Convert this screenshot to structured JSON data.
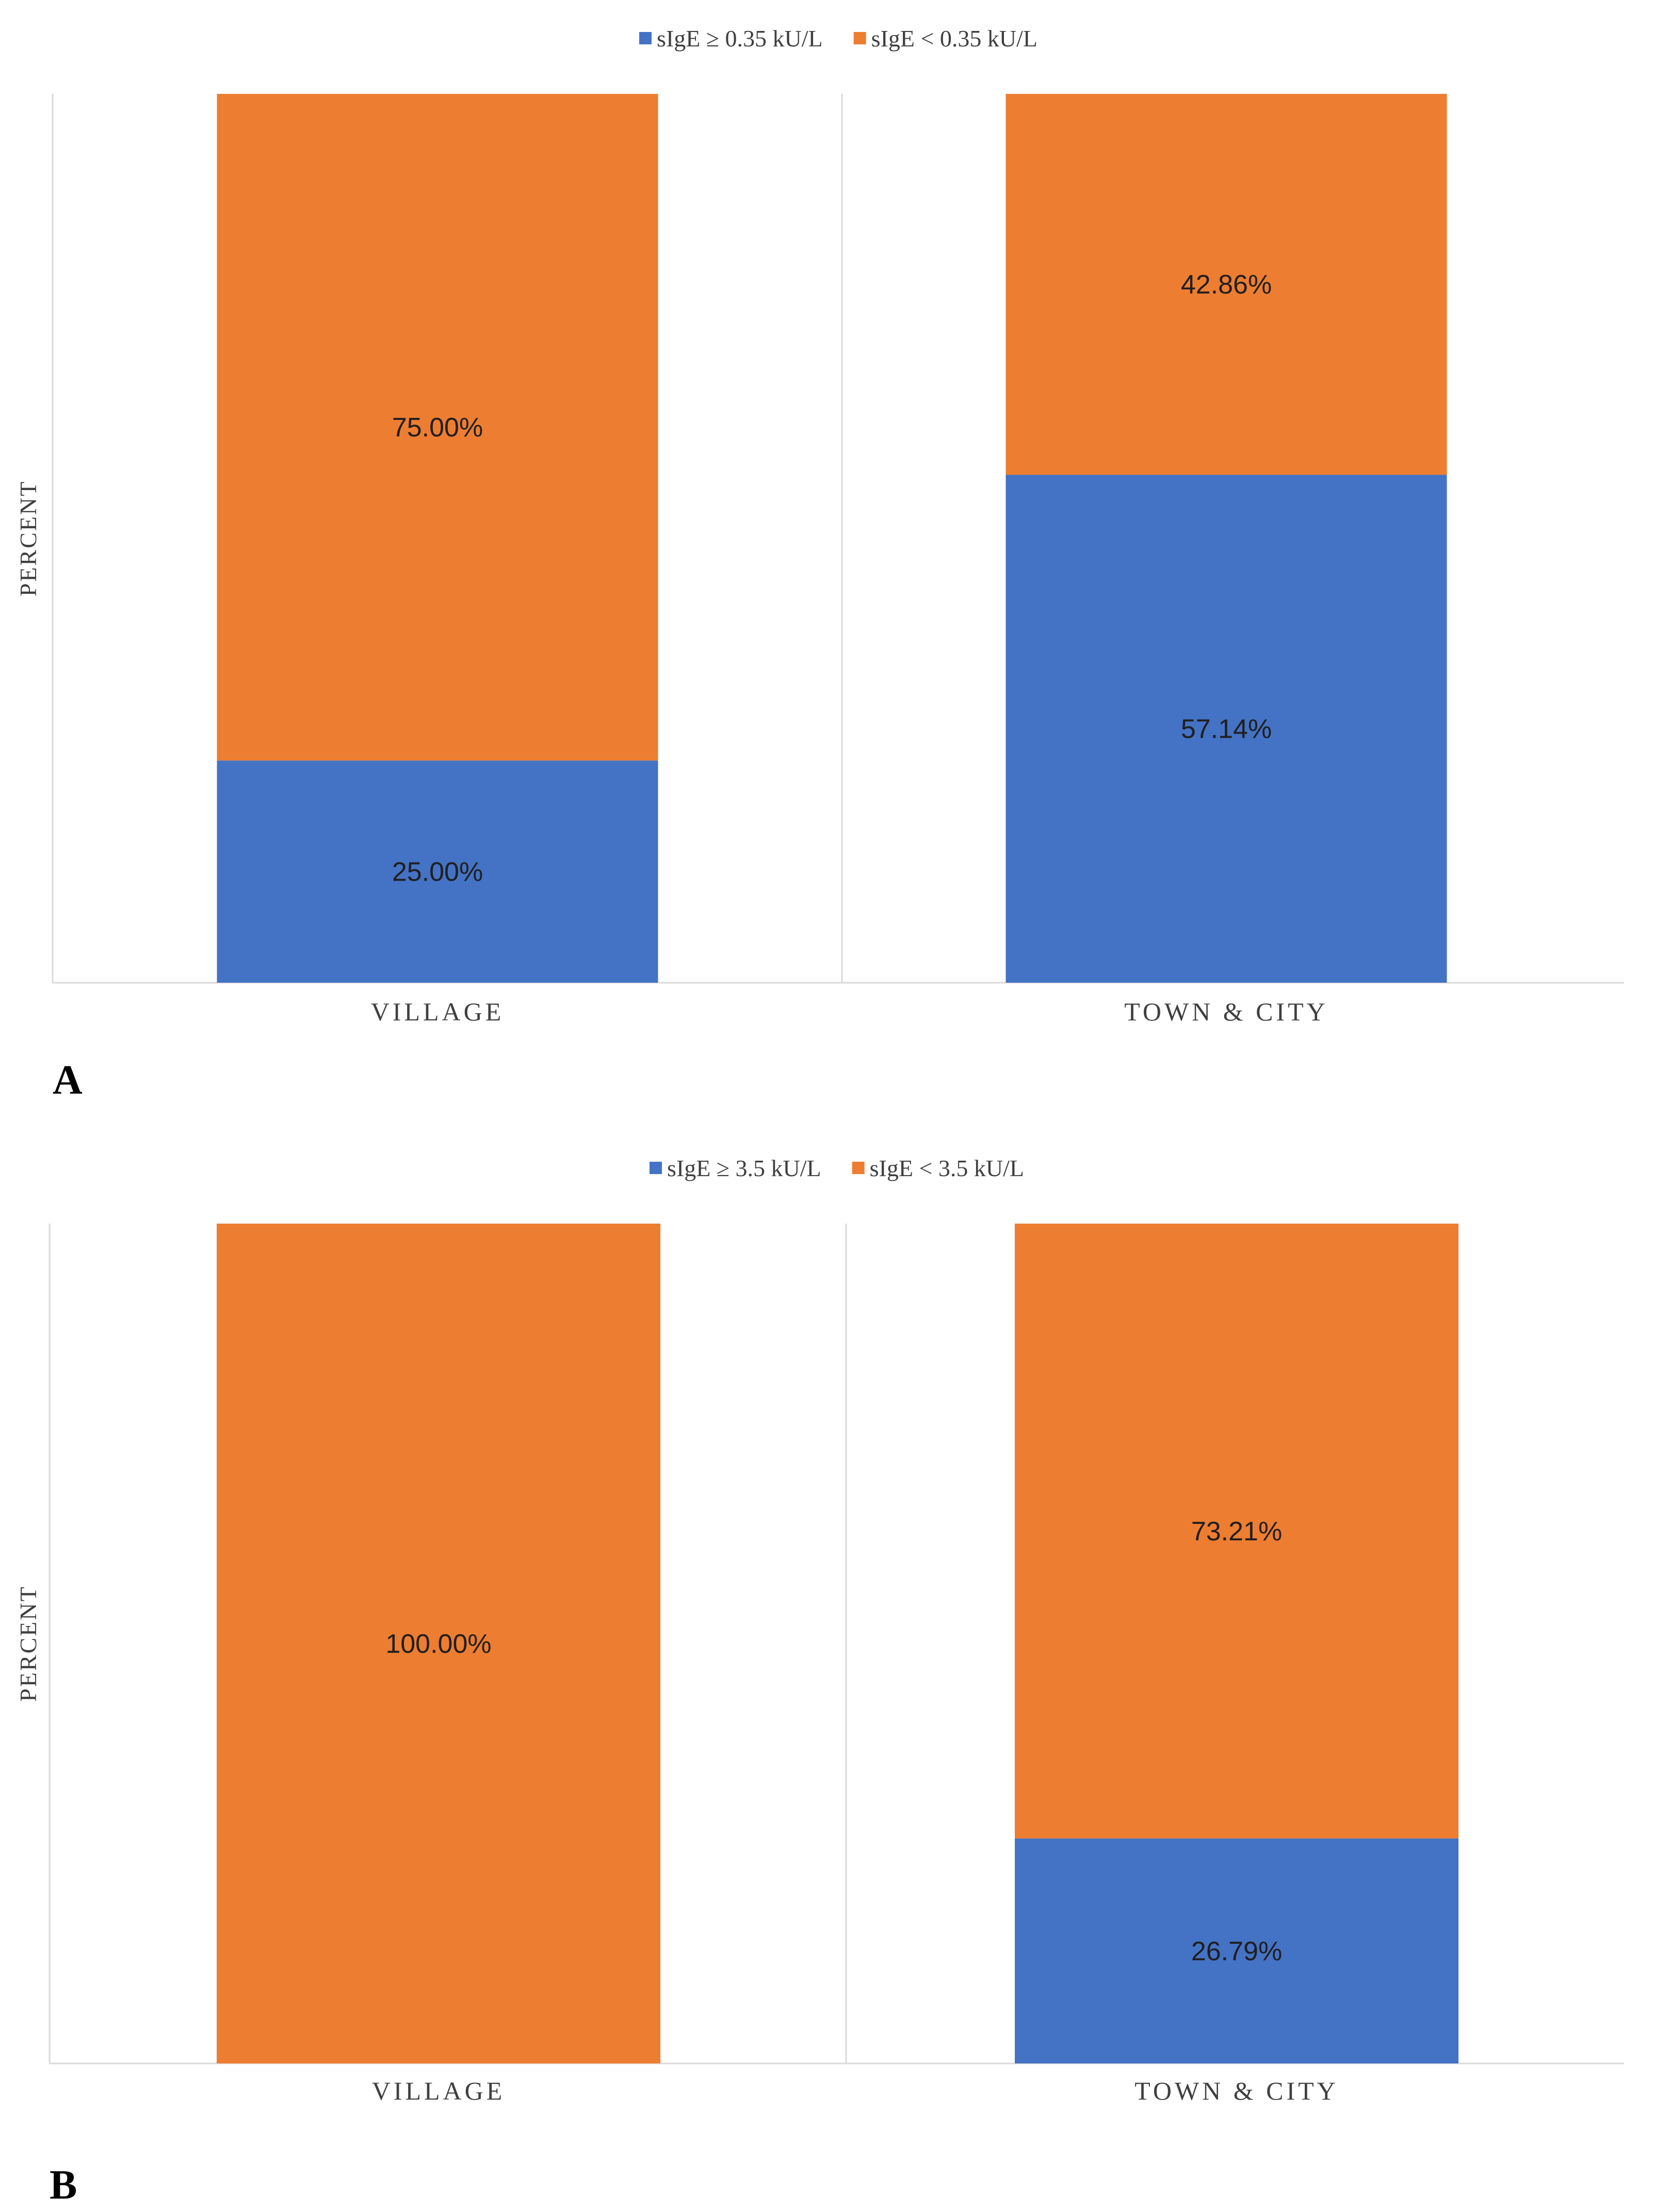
{
  "colors": {
    "series_positive": "#4472C4",
    "series_negative": "#ED7D31",
    "axis": "#d9d9d9"
  },
  "chart_data": [
    {
      "type": "bar",
      "stacked": true,
      "panel_label": "A",
      "ylabel": "PERCENT",
      "xlabel": "",
      "ylim": [
        0,
        100
      ],
      "grid": false,
      "legend_position": "top-center",
      "categories": [
        "VILLAGE",
        "TOWN & CITY"
      ],
      "series": [
        {
          "name": "sIgE ≥ 0.35 kU/L",
          "values": [
            25.0,
            57.14
          ],
          "labels": [
            "25.00%",
            "57.14%"
          ]
        },
        {
          "name": "sIgE < 0.35 kU/L",
          "values": [
            75.0,
            42.86
          ],
          "labels": [
            "75.00%",
            "42.86%"
          ]
        }
      ]
    },
    {
      "type": "bar",
      "stacked": true,
      "panel_label": "B",
      "ylabel": "PERCENT",
      "xlabel": "",
      "ylim": [
        0,
        100
      ],
      "grid": false,
      "legend_position": "top-center",
      "categories": [
        "VILLAGE",
        "TOWN & CITY"
      ],
      "series": [
        {
          "name": "sIgE ≥ 3.5 kU/L",
          "values": [
            0.0,
            26.79
          ],
          "labels": [
            "",
            "26.79%"
          ]
        },
        {
          "name": "sIgE < 3.5 kU/L",
          "values": [
            100.0,
            73.21
          ],
          "labels": [
            "100.00%",
            "73.21%"
          ]
        }
      ]
    }
  ]
}
